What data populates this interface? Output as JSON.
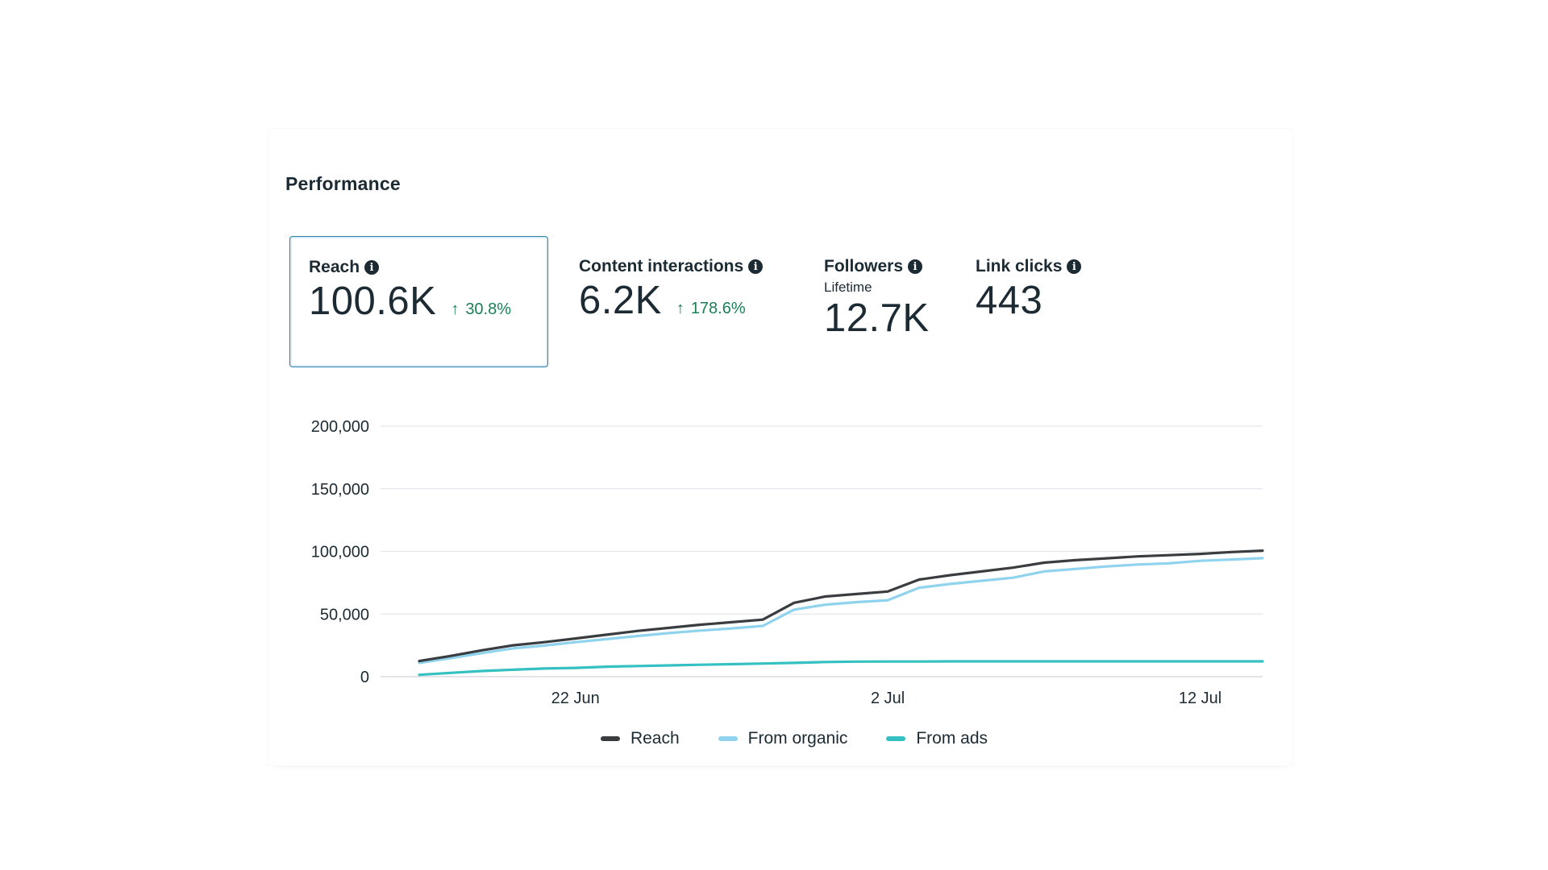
{
  "section": {
    "title": "Performance"
  },
  "metrics": {
    "reach": {
      "label": "Reach",
      "value": "100.6K",
      "change": "30.8%",
      "selected": true
    },
    "interactions": {
      "label": "Content interactions",
      "value": "6.2K",
      "change": "178.6%"
    },
    "followers": {
      "label": "Followers",
      "sublabel": "Lifetime",
      "value": "12.7K"
    },
    "link_clicks": {
      "label": "Link clicks",
      "value": "443"
    }
  },
  "icons": {
    "info": "info-icon",
    "change_arrow": "arrow-up-icon"
  },
  "colors": {
    "reach": "#3a3d40",
    "organic": "#8fd3ee",
    "ads": "#35c0c2",
    "positive": "#1a7f55",
    "selected_border": "#2d7da9"
  },
  "chart_data": {
    "type": "line",
    "x": [
      "2024-06-17",
      "2024-06-18",
      "2024-06-19",
      "2024-06-20",
      "2024-06-21",
      "2024-06-22",
      "2024-06-23",
      "2024-06-24",
      "2024-06-25",
      "2024-06-26",
      "2024-06-27",
      "2024-06-28",
      "2024-06-29",
      "2024-06-30",
      "2024-07-01",
      "2024-07-02",
      "2024-07-03",
      "2024-07-04",
      "2024-07-05",
      "2024-07-06",
      "2024-07-07",
      "2024-07-08",
      "2024-07-09",
      "2024-07-10",
      "2024-07-11",
      "2024-07-12",
      "2024-07-13",
      "2024-07-14"
    ],
    "x_ticks": [
      {
        "x": "2024-06-22",
        "label": "22 Jun"
      },
      {
        "x": "2024-07-02",
        "label": "2 Jul"
      },
      {
        "x": "2024-07-12",
        "label": "12 Jul"
      }
    ],
    "series": [
      {
        "name": "Reach",
        "color": "#3a3d40",
        "values": [
          12500,
          16500,
          21000,
          25000,
          27500,
          30500,
          33500,
          36500,
          39000,
          41500,
          43500,
          45500,
          59000,
          64000,
          66000,
          68000,
          77500,
          81000,
          84000,
          87000,
          91000,
          93000,
          94500,
          96000,
          97000,
          98000,
          99500,
          100600
        ]
      },
      {
        "name": "From organic",
        "color": "#8fd3ee",
        "values": [
          11000,
          14800,
          18800,
          22600,
          24800,
          27500,
          30000,
          32500,
          34800,
          36800,
          38500,
          40500,
          53500,
          57500,
          59500,
          61000,
          71000,
          74000,
          76500,
          79000,
          84000,
          86000,
          88000,
          89500,
          90500,
          92500,
          93500,
          94600
        ]
      },
      {
        "name": "From ads",
        "color": "#35c0c2",
        "values": [
          1500,
          3000,
          4500,
          5500,
          6500,
          7000,
          8000,
          8500,
          9000,
          9500,
          10000,
          10500,
          11000,
          11700,
          12000,
          12100,
          12100,
          12200,
          12200,
          12200,
          12200,
          12200,
          12200,
          12200,
          12200,
          12200,
          12200,
          12200
        ]
      }
    ],
    "ylim": [
      0,
      200000
    ],
    "y_ticks": [
      0,
      50000,
      100000,
      150000,
      200000
    ],
    "y_tick_labels": [
      "0",
      "50,000",
      "100,000",
      "150,000",
      "200,000"
    ],
    "grid": "horizontal",
    "legend_position": "bottom-center"
  }
}
